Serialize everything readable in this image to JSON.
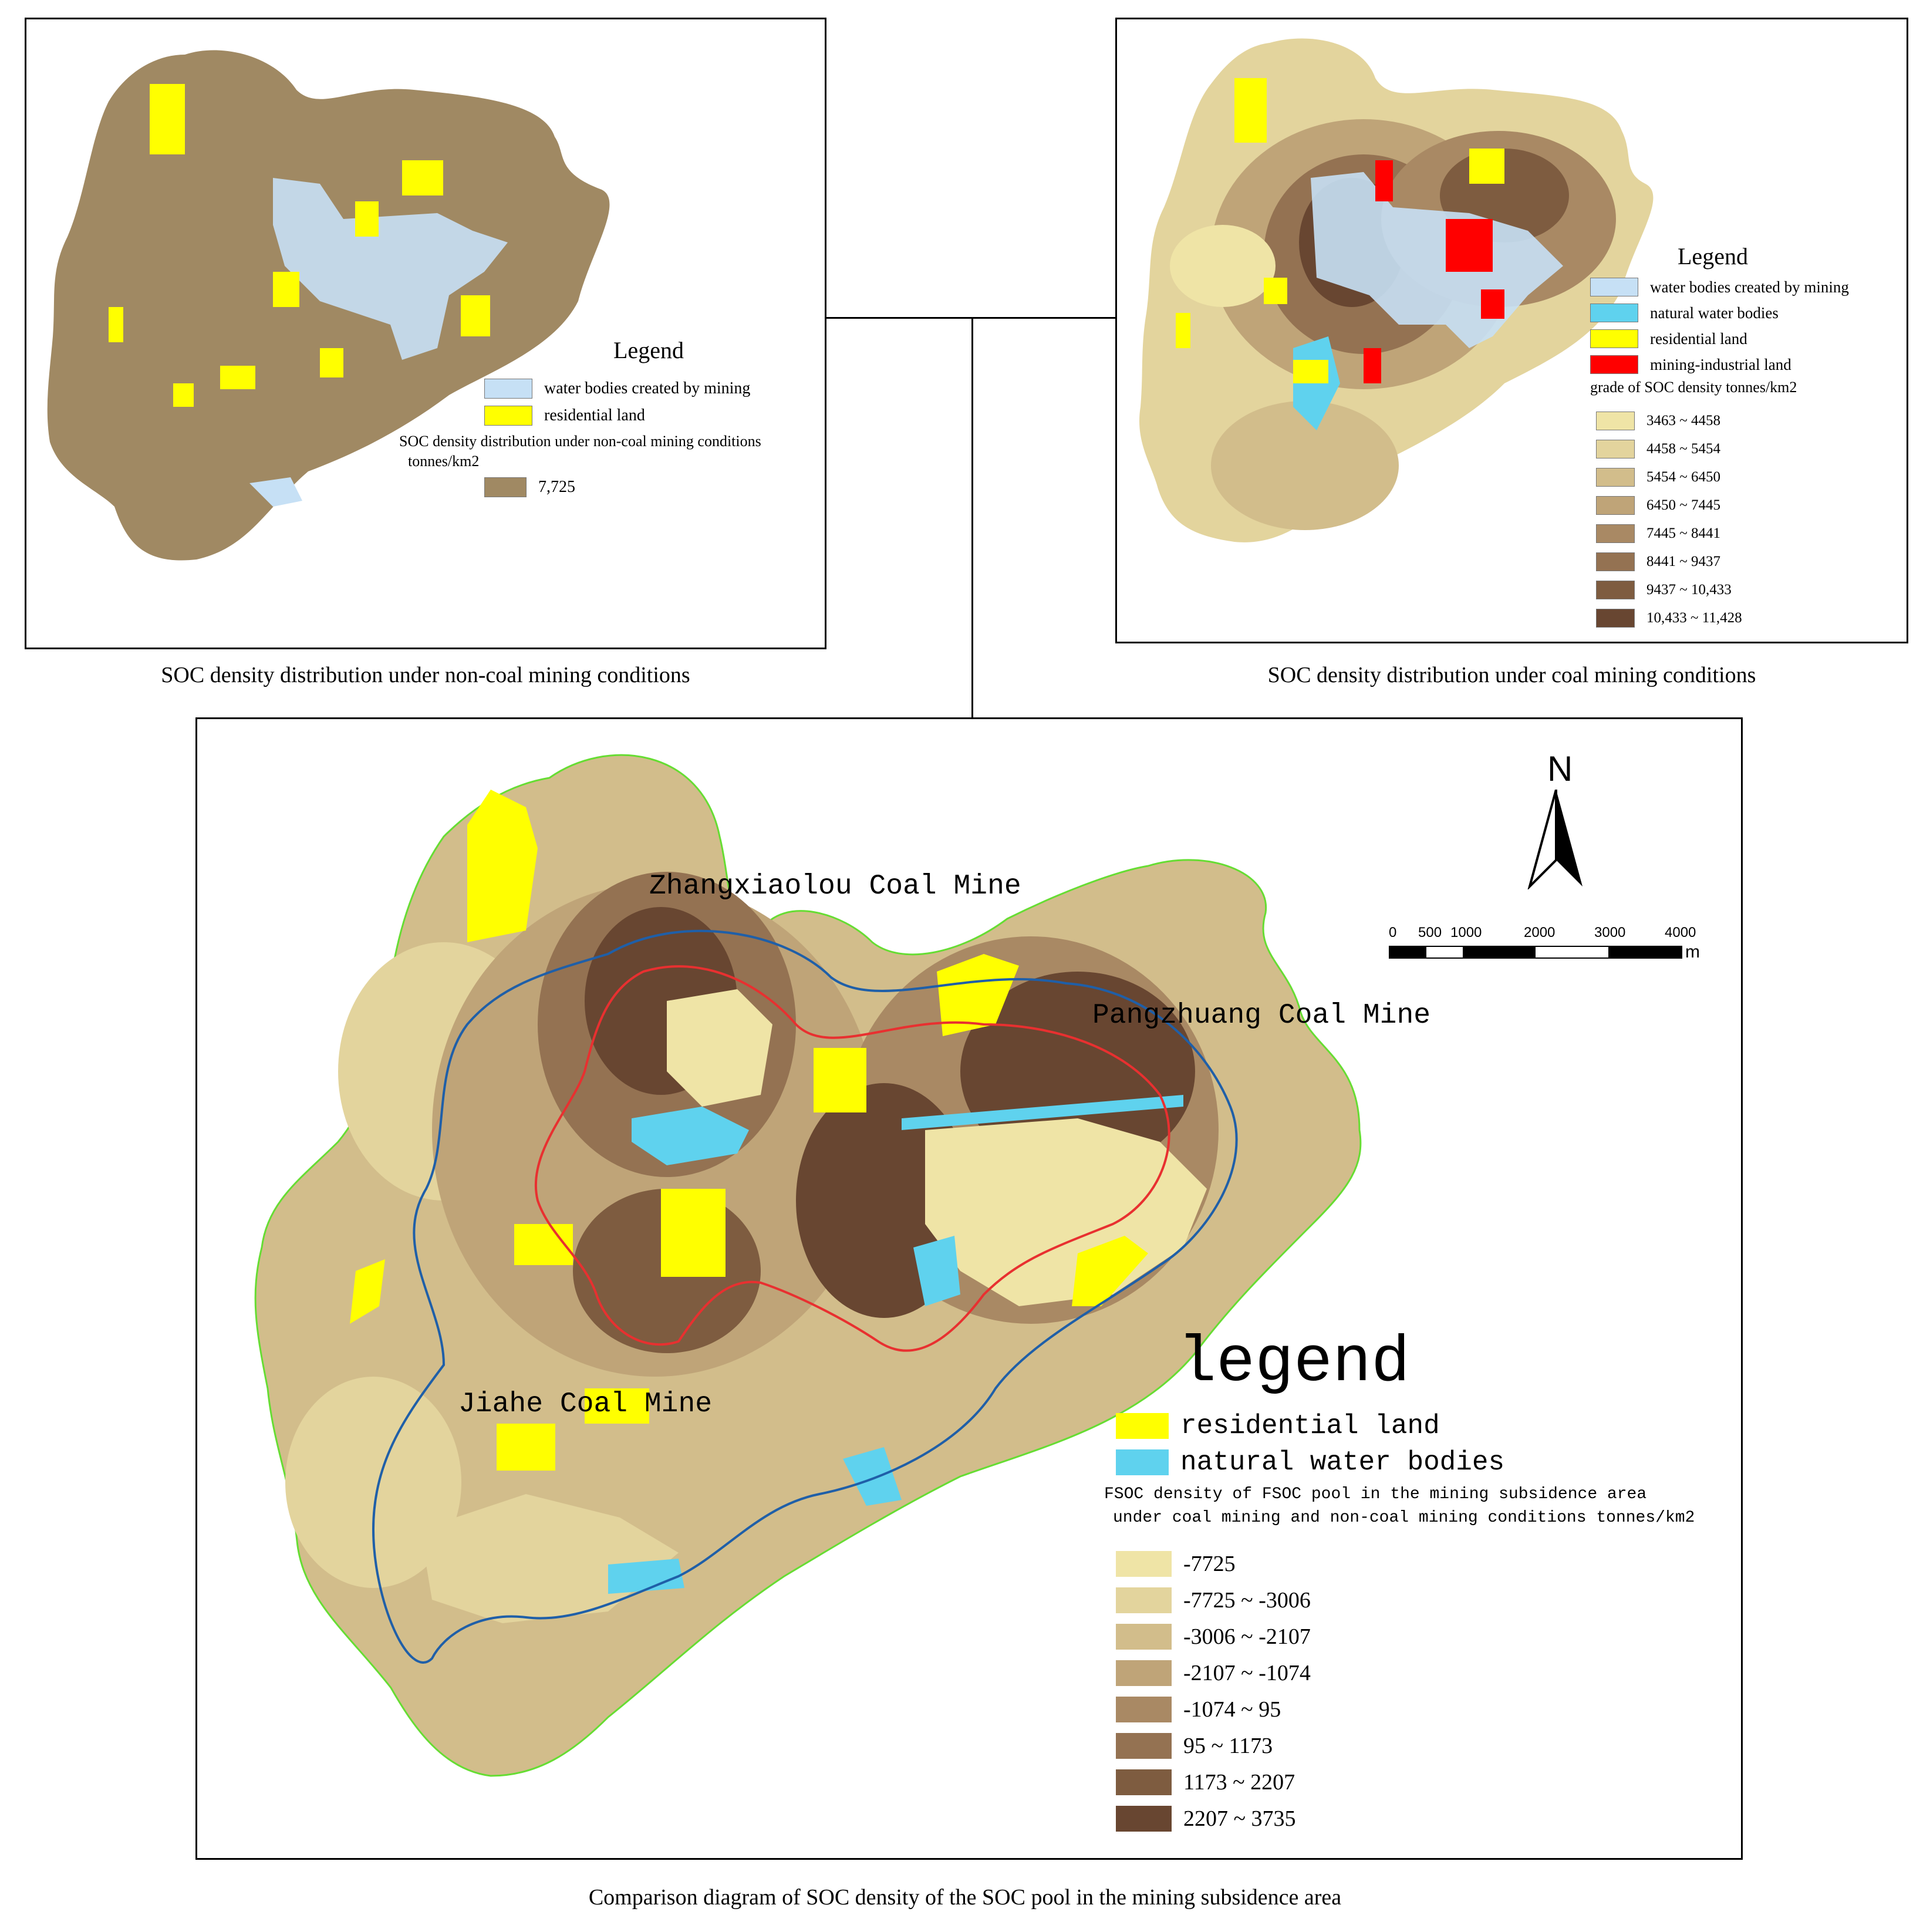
{
  "panels": {
    "non_coal": {
      "caption": "SOC density distribution under non-coal mining conditions",
      "legend_title": "Legend",
      "items": [
        {
          "label": "water bodies created by mining",
          "color": "#c6e0f5"
        },
        {
          "label": "residential land",
          "color": "#ffff00"
        }
      ],
      "soc_title_1": "SOC density distribution under non-coal mining conditions",
      "soc_title_2": "tonnes/km2",
      "soc_value": {
        "label": "7,725",
        "color": "#a08963"
      }
    },
    "coal": {
      "caption": "SOC density distribution under coal mining conditions",
      "legend_title": "Legend",
      "items": [
        {
          "label": "water bodies created by mining",
          "color": "#c6e0f5"
        },
        {
          "label": "natural water bodies",
          "color": "#5fd2ee"
        },
        {
          "label": "residential land",
          "color": "#ffff00"
        },
        {
          "label": "mining-industrial land",
          "color": "#ff0000"
        }
      ],
      "grade_title": "grade of   SOC density tonnes/km2",
      "grades": [
        {
          "label": "3463 ~ 4458",
          "color": "#efe4a6"
        },
        {
          "label": "4458 ~ 5454",
          "color": "#e3d49d"
        },
        {
          "label": "5454 ~ 6450",
          "color": "#d2bd8b"
        },
        {
          "label": "6450 ~ 7445",
          "color": "#bfa478"
        },
        {
          "label": "7445 ~ 8441",
          "color": "#a98964"
        },
        {
          "label": "8441 ~ 9437",
          "color": "#947252"
        },
        {
          "label": "9437 ~ 10,433",
          "color": "#7e5c40"
        },
        {
          "label": "10,433 ~ 11,428",
          "color": "#684631"
        }
      ]
    },
    "comparison": {
      "caption": "Comparison diagram of SOC density of the SOC pool in the mining subsidence area",
      "north": "N",
      "scale_ticks": [
        "0",
        "500",
        "1000",
        "2000",
        "3000",
        "4000"
      ],
      "scale_unit": "m",
      "mines": [
        "Zhangxiaolou Coal Mine",
        "Pangzhuang Coal Mine",
        "Jiahe Coal Mine"
      ],
      "legend_title": "legend",
      "items": [
        {
          "label": "residential land",
          "color": "#ffff00"
        },
        {
          "label": "natural water bodies",
          "color": "#5fd2ee"
        }
      ],
      "fsoc_title_1": "FSOC density of FSOC pool in the mining subsidence area",
      "fsoc_title_2": "under coal mining and non-coal mining conditions   tonnes/km2",
      "classes": [
        {
          "label": "-7725",
          "color": "#efe4a6"
        },
        {
          "label": "-7725 ~ -3006",
          "color": "#e3d49d"
        },
        {
          "label": "-3006 ~ -2107",
          "color": "#d2bd8b"
        },
        {
          "label": "-2107 ~ -1074",
          "color": "#bfa478"
        },
        {
          "label": "-1074 ~ 95",
          "color": "#a98964"
        },
        {
          "label": "95 ~ 1173",
          "color": "#947252"
        },
        {
          "label": "1173 ~ 2207",
          "color": "#7e5c40"
        },
        {
          "label": "2207 ~ 3735",
          "color": "#684631"
        }
      ]
    }
  }
}
